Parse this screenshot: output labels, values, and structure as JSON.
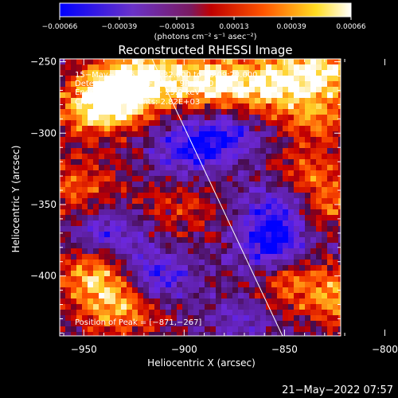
{
  "chart_data": {
    "type": "heatmap",
    "title": "Reconstructed RHESSI Image",
    "xlabel": "Heliocentric X (arcsec)",
    "ylabel": "Heliocentric Y (arcsec)",
    "xlim": [
      -962,
      -822
    ],
    "ylim": [
      -442,
      -248
    ],
    "xticks": [
      -950,
      -900,
      -850,
      -800
    ],
    "xtick_labels": [
      "−950",
      "−900",
      "−850",
      "−800"
    ],
    "yticks": [
      -250,
      -300,
      -350,
      -400
    ],
    "ytick_labels": [
      "−250",
      "−300",
      "−350",
      "−400"
    ],
    "colorbar": {
      "range": [
        -0.00066,
        0.00066
      ],
      "ticks": [
        -0.00066,
        -0.00039,
        -0.00013,
        0.00013,
        0.00039,
        0.00066
      ],
      "tick_labels": [
        "−0.00066",
        "−0.00039",
        "−0.00013",
        "0.00013",
        "0.00039",
        "0.00066"
      ],
      "unit": "(photons cm⁻² s⁻¹ asec⁻²)",
      "colors": [
        "#0000ff",
        "#6633cc",
        "#cc0000",
        "#ff6600",
        "#ffff33",
        "#ffffff"
      ]
    },
    "annotations": {
      "line1": "15−May−2015 18:07:32.000 to 18:09:28.000",
      "line2": "Detectors: 3F 5F 6F 7F 8F 9F, Att 0",
      "line3": "Energy Range: 12.0 − 25.0 keV",
      "line4": "Clean    Total counts: 2.82E+03",
      "peak": "Position of Peak = [−871,−267]"
    },
    "peak": {
      "x": -871,
      "y": -267
    },
    "limb_line": {
      "x": [
        -916,
        -851
      ],
      "y": [
        -248,
        -442
      ]
    },
    "hotspots": [
      {
        "x": -942,
        "y": -282,
        "amp": 1.0
      },
      {
        "x": -932,
        "y": -268,
        "amp": 0.8
      },
      {
        "x": -917,
        "y": -260,
        "amp": 0.7
      },
      {
        "x": -888,
        "y": -264,
        "amp": 0.95
      },
      {
        "x": -862,
        "y": -268,
        "amp": 0.75
      },
      {
        "x": -842,
        "y": -262,
        "amp": 0.6
      },
      {
        "x": -827,
        "y": -255,
        "amp": 0.65
      },
      {
        "x": -833,
        "y": -290,
        "amp": 0.5
      },
      {
        "x": -838,
        "y": -330,
        "amp": 0.55
      },
      {
        "x": -827,
        "y": -355,
        "amp": 0.6
      },
      {
        "x": -944,
        "y": -398,
        "amp": 0.8
      },
      {
        "x": -933,
        "y": -422,
        "amp": 0.75
      },
      {
        "x": -812,
        "y": -418,
        "amp": 0.85
      },
      {
        "x": -842,
        "y": -405,
        "amp": 0.65
      },
      {
        "x": -952,
        "y": -338,
        "amp": 0.55
      },
      {
        "x": -902,
        "y": -352,
        "amp": 0.35
      }
    ],
    "coldspots": [
      {
        "x": -898,
        "y": -312,
        "amp": 0.8
      },
      {
        "x": -878,
        "y": -300,
        "amp": 0.7
      },
      {
        "x": -855,
        "y": -378,
        "amp": 1.0
      },
      {
        "x": -852,
        "y": -350,
        "amp": 0.8
      },
      {
        "x": -915,
        "y": -400,
        "amp": 0.85
      },
      {
        "x": -938,
        "y": -372,
        "amp": 0.7
      },
      {
        "x": -808,
        "y": -372,
        "amp": 0.5
      },
      {
        "x": -872,
        "y": -432,
        "amp": 0.4
      }
    ]
  },
  "footer": {
    "timestamp": "21−May−2022 07:57"
  }
}
